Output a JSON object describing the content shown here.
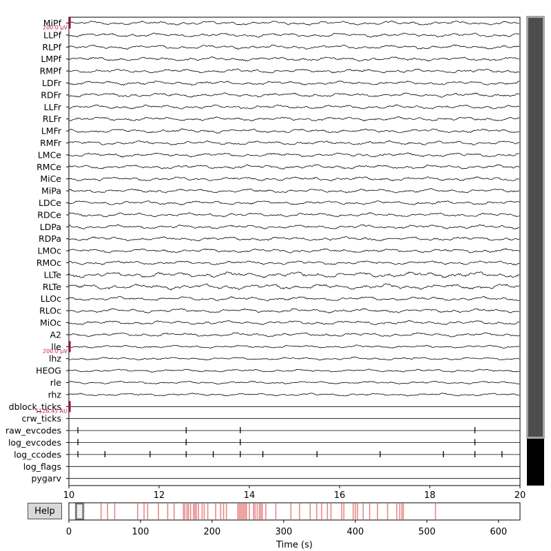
{
  "help_label": "Help",
  "colors": {
    "trace": "#000000",
    "scalebar": "#c2185b",
    "event": "#e06060",
    "scrollbar_fill": "#4d4d4d",
    "scrollbar_border": "#a6a6a6",
    "scrollbar_bottom": "#000000",
    "overview_window": "#7f7f7f"
  },
  "chart_data": {
    "type": "line",
    "title": "",
    "xlabel": "",
    "xlim": [
      10,
      20
    ],
    "x_ticks": [
      "10",
      "12",
      "14",
      "16",
      "18",
      "20"
    ],
    "grid": false,
    "channels": [
      {
        "name": "MiPf",
        "kind": "eeg"
      },
      {
        "name": "LLPf",
        "kind": "eeg"
      },
      {
        "name": "RLPf",
        "kind": "eeg"
      },
      {
        "name": "LMPf",
        "kind": "eeg"
      },
      {
        "name": "RMPf",
        "kind": "eeg"
      },
      {
        "name": "LDFr",
        "kind": "eeg"
      },
      {
        "name": "RDFr",
        "kind": "eeg"
      },
      {
        "name": "LLFr",
        "kind": "eeg"
      },
      {
        "name": "RLFr",
        "kind": "eeg"
      },
      {
        "name": "LMFr",
        "kind": "eeg"
      },
      {
        "name": "RMFr",
        "kind": "eeg"
      },
      {
        "name": "LMCe",
        "kind": "eeg"
      },
      {
        "name": "RMCe",
        "kind": "eeg"
      },
      {
        "name": "MiCe",
        "kind": "eeg"
      },
      {
        "name": "MiPa",
        "kind": "eeg"
      },
      {
        "name": "LDCe",
        "kind": "eeg"
      },
      {
        "name": "RDCe",
        "kind": "eeg"
      },
      {
        "name": "LDPa",
        "kind": "eeg"
      },
      {
        "name": "RDPa",
        "kind": "eeg"
      },
      {
        "name": "LMOc",
        "kind": "eeg"
      },
      {
        "name": "RMOc",
        "kind": "eeg"
      },
      {
        "name": "LLTe",
        "kind": "eeg"
      },
      {
        "name": "RLTe",
        "kind": "eeg"
      },
      {
        "name": "LLOc",
        "kind": "eeg"
      },
      {
        "name": "RLOc",
        "kind": "eeg"
      },
      {
        "name": "MiOc",
        "kind": "eeg"
      },
      {
        "name": "A2",
        "kind": "eeg"
      },
      {
        "name": "lle",
        "kind": "eog"
      },
      {
        "name": "lhz",
        "kind": "eog"
      },
      {
        "name": "HEOG",
        "kind": "eog"
      },
      {
        "name": "rle",
        "kind": "eog"
      },
      {
        "name": "rhz",
        "kind": "eog"
      },
      {
        "name": "dblock_ticks",
        "kind": "misc",
        "ticks": []
      },
      {
        "name": "crw_ticks",
        "kind": "misc",
        "ticks": []
      },
      {
        "name": "raw_evcodes",
        "kind": "misc",
        "ticks": [
          10.2,
          12.6,
          13.8,
          19.0
        ]
      },
      {
        "name": "log_evcodes",
        "kind": "misc",
        "ticks": [
          10.2,
          12.6,
          13.8,
          19.0
        ]
      },
      {
        "name": "log_ccodes",
        "kind": "misc",
        "ticks": [
          10.2,
          10.8,
          11.8,
          12.6,
          13.2,
          13.8,
          14.3,
          15.5,
          16.9,
          18.3,
          19.0,
          19.6
        ]
      },
      {
        "name": "log_flags",
        "kind": "misc",
        "ticks": []
      },
      {
        "name": "pygarv",
        "kind": "misc",
        "ticks": []
      }
    ],
    "scale_bars": [
      {
        "channel": "MiPf",
        "label": "200.0 µV"
      },
      {
        "channel": "lle",
        "label": "200.0 µV"
      },
      {
        "channel": "dblock_ticks",
        "label": "5126.45 AU"
      }
    ],
    "vertical_scrollbar": {
      "visible_fraction": 0.9
    },
    "overview": {
      "xlabel": "Time (s)",
      "xlim": [
        0,
        630
      ],
      "x_ticks": [
        "0",
        "100",
        "200",
        "300",
        "400",
        "500",
        "600"
      ],
      "view_window": [
        10,
        20
      ],
      "event_times": [
        45,
        54,
        64,
        96,
        105,
        110,
        125,
        138,
        147,
        160,
        162,
        165,
        167,
        170,
        174,
        176,
        178,
        181,
        186,
        189,
        194,
        205,
        212,
        216,
        220,
        236,
        238,
        240,
        242,
        244,
        246,
        248,
        252,
        258,
        260,
        263,
        266,
        268,
        270,
        275,
        289,
        310,
        322,
        337,
        346,
        353,
        361,
        366,
        381,
        384,
        397,
        400,
        403,
        411,
        420,
        431,
        445,
        458,
        462,
        465,
        467,
        512
      ]
    }
  }
}
